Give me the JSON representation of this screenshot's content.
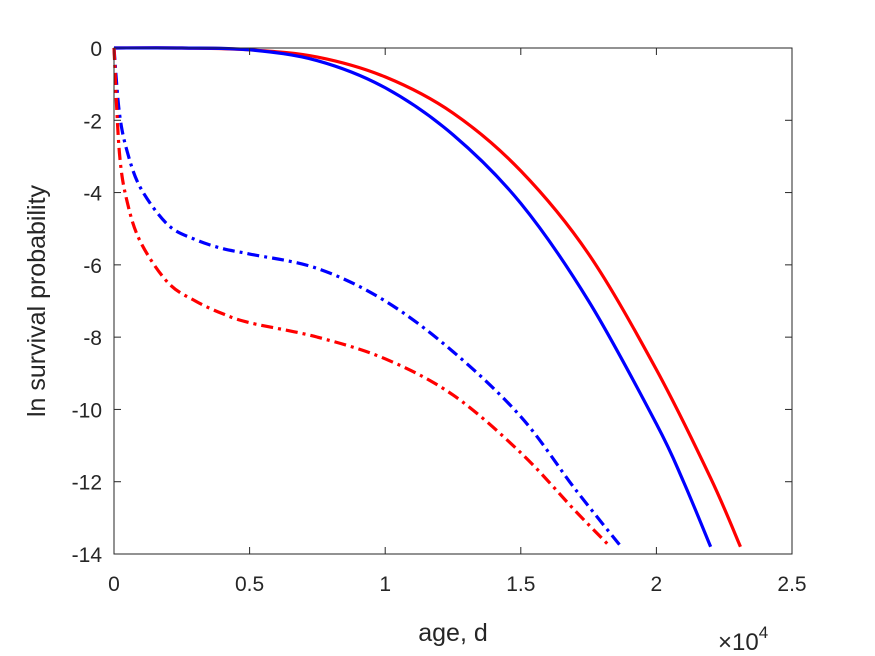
{
  "chart_data": {
    "type": "line",
    "title": "",
    "xlabel": "age, d",
    "ylabel": "ln survival probability",
    "x_exponent_label": {
      "base": "×10",
      "power": "4"
    },
    "xlim": [
      0,
      25000
    ],
    "ylim": [
      -14,
      0
    ],
    "xticks": [
      0,
      5000,
      10000,
      15000,
      20000,
      25000
    ],
    "xtick_labels": [
      "0",
      "0.5",
      "1",
      "1.5",
      "2",
      "2.5"
    ],
    "yticks": [
      0,
      -2,
      -4,
      -6,
      -8,
      -10,
      -12,
      -14
    ],
    "ytick_labels": [
      "0",
      "-2",
      "-4",
      "-6",
      "-8",
      "-10",
      "-12",
      "-14"
    ],
    "grid": false,
    "series": [
      {
        "color": "#ff0000",
        "style": "solid",
        "x": [
          0,
          2500,
          5000,
          7500,
          10000,
          12500,
          15000,
          17500,
          20000,
          22000,
          23100
        ],
        "y": [
          0,
          0,
          -0.05,
          -0.25,
          -0.8,
          -1.8,
          -3.4,
          -5.7,
          -8.9,
          -11.9,
          -13.8
        ]
      },
      {
        "color": "#0000ff",
        "style": "solid",
        "x": [
          0,
          2500,
          5000,
          7500,
          10000,
          12500,
          15000,
          17500,
          20000,
          21000,
          22000
        ],
        "y": [
          0,
          0,
          -0.05,
          -0.35,
          -1.1,
          -2.4,
          -4.3,
          -7.0,
          -10.4,
          -12.0,
          -13.8
        ]
      },
      {
        "color": "#0000ff",
        "style": "dashdot",
        "x": [
          0,
          200,
          500,
          1000,
          2000,
          3000,
          4000,
          5000,
          7500,
          10000,
          12500,
          15000,
          17000,
          18700
        ],
        "y": [
          0,
          -1.8,
          -2.9,
          -3.9,
          -4.9,
          -5.3,
          -5.55,
          -5.7,
          -6.1,
          -7.0,
          -8.4,
          -10.2,
          -12.2,
          -13.8
        ]
      },
      {
        "color": "#ff0000",
        "style": "dashdot",
        "x": [
          0,
          200,
          500,
          1000,
          2000,
          3000,
          4000,
          5000,
          7500,
          10000,
          12500,
          15000,
          17000,
          18300
        ],
        "y": [
          0,
          -2.9,
          -4.3,
          -5.4,
          -6.5,
          -7.0,
          -7.35,
          -7.6,
          -8.0,
          -8.6,
          -9.6,
          -11.2,
          -12.8,
          -13.8
        ]
      }
    ]
  }
}
